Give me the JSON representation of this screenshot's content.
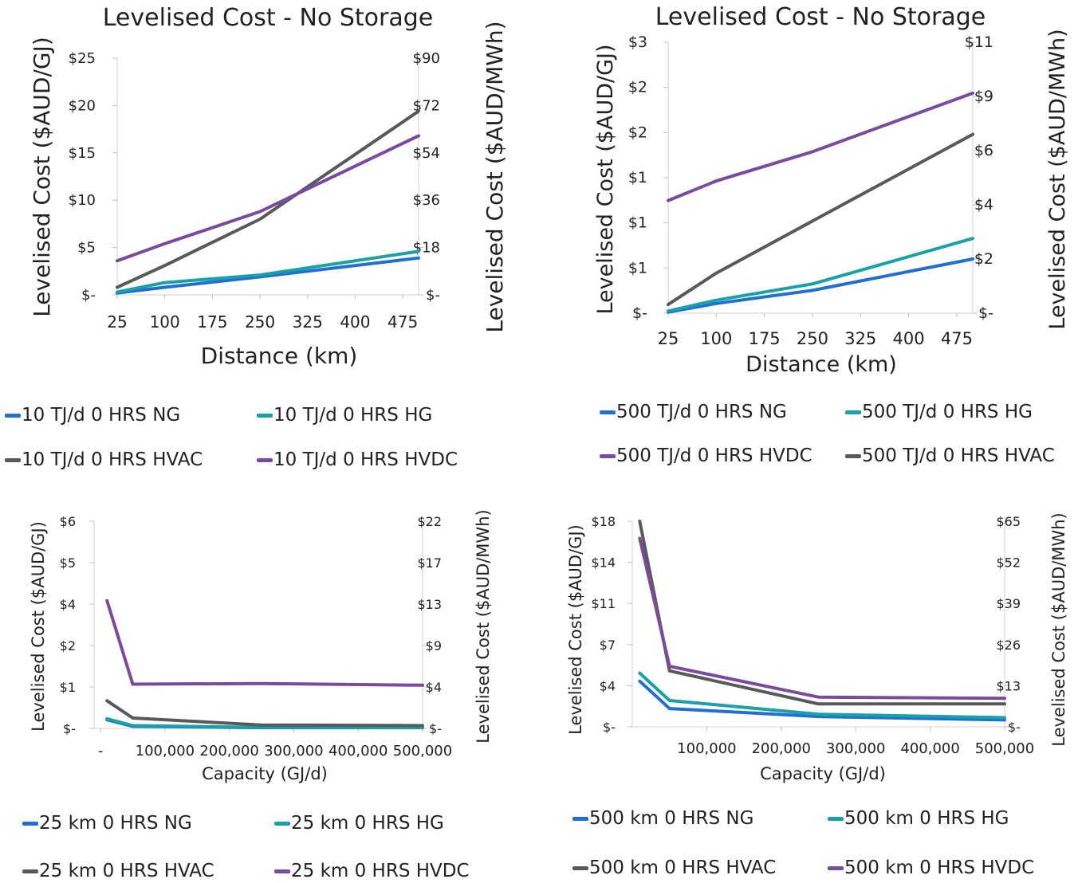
{
  "chart_data": [
    {
      "type": "line",
      "title": "Levelised Cost - No Storage",
      "xlabel": "Distance (km)",
      "ylabel": "Levelised Cost ($AUD/GJ)",
      "y2label": "Levelised Cost ($AUD/MWh)",
      "x_ticks": [
        "25",
        "100",
        "175",
        "250",
        "325",
        "400",
        "475"
      ],
      "xlim": [
        25,
        500
      ],
      "ylim": [
        0,
        25
      ],
      "y_ticks": [
        "$-",
        "$5",
        "$10",
        "$15",
        "$20",
        "$25"
      ],
      "y2_ticks": [
        "$-",
        "$18",
        "$36",
        "$54",
        "$72",
        "$90"
      ],
      "grid": false,
      "legend_position": "bottom",
      "series": [
        {
          "name": "10 TJ/d 0 HRS NG",
          "color": "#1f6fd6",
          "x": [
            25,
            100,
            250,
            500
          ],
          "y": [
            0.2,
            0.8,
            1.9,
            3.9
          ]
        },
        {
          "name": "10 TJ/d 0 HRS HG",
          "color": "#17a2a8",
          "x": [
            25,
            100,
            250,
            500
          ],
          "y": [
            0.3,
            1.3,
            2.1,
            4.6
          ]
        },
        {
          "name": "10 TJ/d 0 HRS HVAC",
          "color": "#58595b",
          "x": [
            25,
            100,
            250,
            500
          ],
          "y": [
            0.8,
            3.1,
            8.0,
            19.4
          ]
        },
        {
          "name": "10 TJ/d 0 HRS HVDC",
          "color": "#7a4a9e",
          "x": [
            25,
            100,
            250,
            500
          ],
          "y": [
            3.6,
            5.4,
            8.8,
            16.8
          ]
        }
      ]
    },
    {
      "type": "line",
      "title": "Levelised Cost - No Storage",
      "xlabel": "Distance (km)",
      "ylabel": "Levelised Cost ($AUD/GJ)",
      "y2label": "Levelised Cost ($AUD/MWh)",
      "x_ticks": [
        "25",
        "100",
        "175",
        "250",
        "325",
        "400",
        "475"
      ],
      "xlim": [
        25,
        500
      ],
      "ylim": [
        0,
        2.5
      ],
      "y_ticks": [
        "$-",
        "$1",
        "$1",
        "$1",
        "$2",
        "$2",
        "$3"
      ],
      "y2_ticks": [
        "$-",
        "$2",
        "$4",
        "$6",
        "$9",
        "$11"
      ],
      "grid": false,
      "legend_position": "bottom",
      "series": [
        {
          "name": "500 TJ/d 0 HRS NG",
          "color": "#1f6fd6",
          "x": [
            25,
            100,
            250,
            500
          ],
          "y": [
            0.01,
            0.09,
            0.21,
            0.5
          ]
        },
        {
          "name": "500 TJ/d 0 HRS HG",
          "color": "#17a2a8",
          "x": [
            25,
            100,
            250,
            500
          ],
          "y": [
            0.02,
            0.12,
            0.27,
            0.69
          ]
        },
        {
          "name": "500 TJ/d 0 HRS HVDC",
          "color": "#7a4a9e",
          "x": [
            25,
            100,
            250,
            500
          ],
          "y": [
            1.04,
            1.22,
            1.49,
            2.03
          ]
        },
        {
          "name": "500 TJ/d 0 HRS HVAC",
          "color": "#58595b",
          "x": [
            25,
            100,
            250,
            500
          ],
          "y": [
            0.08,
            0.37,
            0.85,
            1.65
          ]
        }
      ]
    },
    {
      "type": "line",
      "title": "",
      "xlabel": "Capacity (GJ/d)",
      "ylabel": "Levelised Cost ($AUD/GJ)",
      "y2label": "Levelised Cost ($AUD/MWh)",
      "x_ticks": [
        "-",
        "100,000",
        "200,000",
        "300,000",
        "400,000",
        "500,000"
      ],
      "xlim": [
        0,
        500000
      ],
      "ylim": [
        0,
        6
      ],
      "y_ticks": [
        "$-",
        "$1",
        "$2",
        "$4",
        "$5",
        "$6"
      ],
      "y2_ticks": [
        "$-",
        "$4",
        "$9",
        "$13",
        "$17",
        "$22"
      ],
      "grid": false,
      "legend_position": "bottom",
      "series": [
        {
          "name": "25 km 0 HRS NG",
          "color": "#1f6fd6",
          "x": [
            10000,
            50000,
            250000,
            500000
          ],
          "y": [
            0.25,
            0.06,
            0.02,
            0.02
          ]
        },
        {
          "name": "25 km 0 HRS HG",
          "color": "#17a2a8",
          "x": [
            10000,
            50000,
            250000,
            500000
          ],
          "y": [
            0.28,
            0.08,
            0.03,
            0.03
          ]
        },
        {
          "name": "25 km 0 HRS HVAC",
          "color": "#58595b",
          "x": [
            10000,
            50000,
            250000,
            500000
          ],
          "y": [
            0.8,
            0.3,
            0.1,
            0.08
          ]
        },
        {
          "name": "25 km 0 HRS HVDC",
          "color": "#7a4a9e",
          "x": [
            10000,
            50000,
            250000,
            500000
          ],
          "y": [
            3.7,
            1.28,
            1.3,
            1.25
          ]
        }
      ]
    },
    {
      "type": "line",
      "title": "",
      "xlabel": "Capacity (GJ/d)",
      "ylabel": "Levelised Cost ($AUD/GJ)",
      "y2label": "Levelised Cost ($AUD/MWh)",
      "x_ticks": [
        "100,000",
        "200,000",
        "300,000",
        "400,000",
        "500,000"
      ],
      "xlim": [
        0,
        500000
      ],
      "ylim": [
        0,
        18
      ],
      "y_ticks": [
        "$-",
        "$4",
        "$7",
        "$11",
        "$14",
        "$18"
      ],
      "y2_ticks": [
        "$-",
        "$13",
        "$26",
        "$39",
        "$52",
        "$65"
      ],
      "grid": false,
      "legend_position": "bottom",
      "series": [
        {
          "name": "500 km 0 HRS NG",
          "color": "#1f6fd6",
          "x": [
            10000,
            50000,
            250000,
            500000
          ],
          "y": [
            4.0,
            1.6,
            0.9,
            0.6
          ]
        },
        {
          "name": "500 km 0 HRS HG",
          "color": "#17a2a8",
          "x": [
            10000,
            50000,
            250000,
            500000
          ],
          "y": [
            4.7,
            2.3,
            1.1,
            0.8
          ]
        },
        {
          "name": "500 km 0 HRS HVAC",
          "color": "#58595b",
          "x": [
            10000,
            50000,
            250000,
            500000
          ],
          "y": [
            18.0,
            4.9,
            2.0,
            2.0
          ]
        },
        {
          "name": "500 km 0 HRS HVDC",
          "color": "#7a4a9e",
          "x": [
            10000,
            50000,
            250000,
            500000
          ],
          "y": [
            16.5,
            5.3,
            2.6,
            2.5
          ]
        }
      ]
    }
  ]
}
